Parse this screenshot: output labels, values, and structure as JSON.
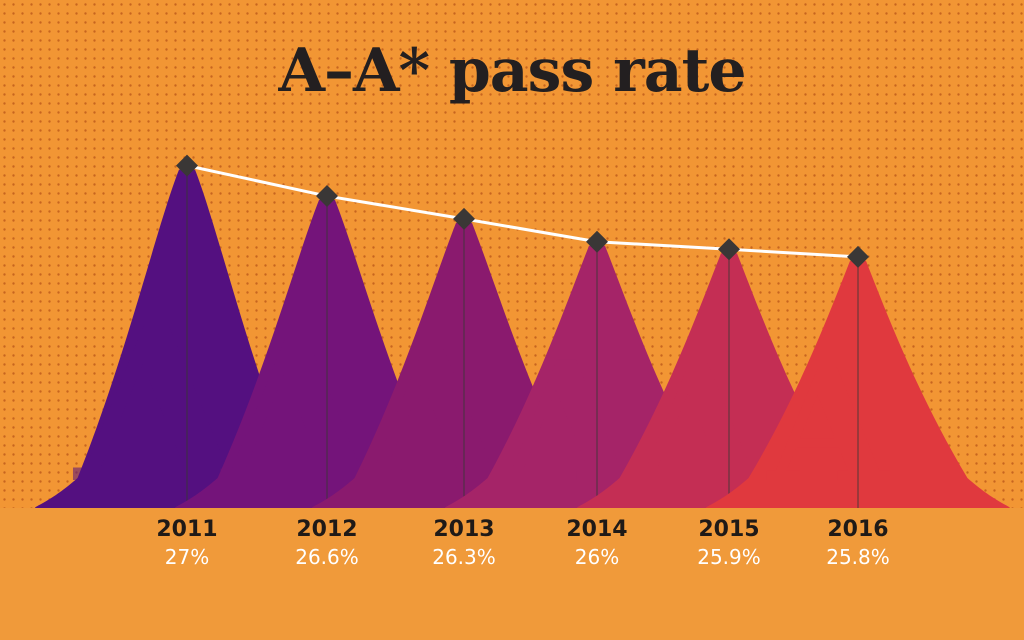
{
  "chart_data": {
    "type": "line",
    "title": "A–A* pass rate",
    "categories": [
      "2011",
      "2012",
      "2013",
      "2014",
      "2015",
      "2016"
    ],
    "values": [
      27,
      26.6,
      26.3,
      26,
      25.9,
      25.8
    ],
    "value_labels": [
      "27%",
      "26.6%",
      "26.3%",
      "26%",
      "25.9%",
      "25.8%"
    ],
    "glyph": "A",
    "ylim": [
      22.5,
      27.1
    ],
    "colors": {
      "background": "#F29634",
      "strip": "#F09A3A",
      "dots": "#C7651F",
      "line": "#FFFFFF",
      "markers": "#3A3736",
      "glyphs": [
        "#541080",
        "#74147A",
        "#8A1A6E",
        "#A52468",
        "#C42E54",
        "#E0393E"
      ]
    }
  }
}
